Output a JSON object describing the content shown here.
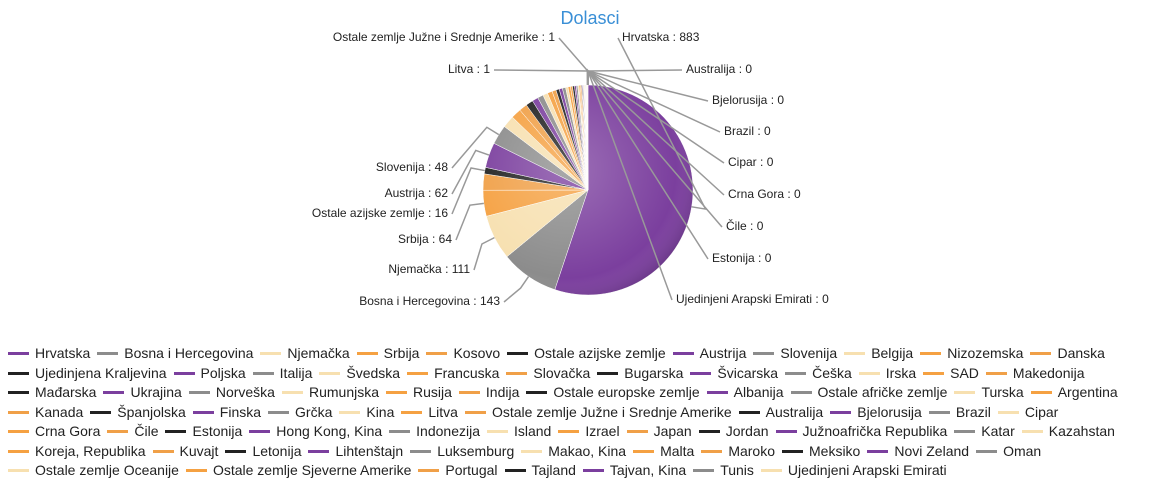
{
  "chart_data": {
    "type": "pie",
    "title": "Dolasci",
    "categories": [
      "Hrvatska",
      "Bosna i Hercegovina",
      "Njemačka",
      "Srbija",
      "Kosovo",
      "Ostale azijske zemlje",
      "Austrija",
      "Slovenija",
      "Belgija",
      "Nizozemska",
      "Danska",
      "Ujedinjena Kraljevina",
      "Poljska",
      "Italija",
      "Švedska",
      "Francuska",
      "Slovačka",
      "Bugarska",
      "Švicarska",
      "Češka",
      "Irska",
      "SAD",
      "Makedonija",
      "Mađarska",
      "Ukrajina",
      "Norveška",
      "Rumunjska",
      "Rusija",
      "Indija",
      "Ostale europske zemlje",
      "Albanija",
      "Ostale afričke zemlje",
      "Turska",
      "Argentina",
      "Kanada",
      "Španjolska",
      "Finska",
      "Grčka",
      "Kina",
      "Litva",
      "Ostale zemlje Južne i Srednje Amerike",
      "Australija",
      "Bjelorusija",
      "Brazil",
      "Cipar",
      "Crna Gora",
      "Čile",
      "Estonija",
      "Hong Kong, Kina",
      "Indonezija",
      "Island",
      "Izrael",
      "Japan",
      "Jordan",
      "Južnoafrička Republika",
      "Katar",
      "Kazahstan",
      "Koreja, Republika",
      "Kuvajt",
      "Letonija",
      "Lihtenštajn",
      "Luksemburg",
      "Makao, Kina",
      "Malta",
      "Maroko",
      "Meksiko",
      "Novi Zeland",
      "Oman",
      "Ostale zemlje Oceanije",
      "Ostale zemlje Sjeverne Amerike",
      "Portugal",
      "Tajland",
      "Tajvan, Kina",
      "Tunis",
      "Ujedinjeni Arapski Emirati"
    ],
    "values": [
      883,
      143,
      111,
      64,
      40,
      16,
      62,
      48,
      30,
      25,
      20,
      18,
      15,
      14,
      12,
      12,
      10,
      8,
      8,
      8,
      6,
      6,
      5,
      5,
      4,
      4,
      3,
      3,
      3,
      2,
      2,
      2,
      2,
      1,
      1,
      1,
      1,
      1,
      1,
      1,
      1,
      0,
      0,
      0,
      0,
      0,
      0,
      0,
      0,
      0,
      0,
      0,
      0,
      0,
      0,
      0,
      0,
      0,
      0,
      0,
      0,
      0,
      0,
      0,
      0,
      0,
      0,
      0,
      0,
      0,
      0,
      0,
      0,
      0,
      0
    ],
    "palette": [
      "#7b3f9e",
      "#8c8c8c",
      "#f7e0b0",
      "#f5a142",
      "#f0a048",
      "#222222"
    ],
    "legend": "bottom"
  }
}
